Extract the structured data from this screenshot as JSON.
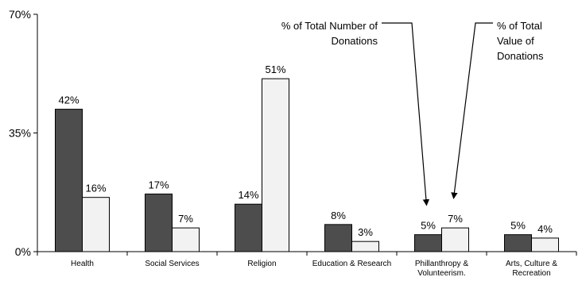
{
  "chart_data": {
    "type": "bar",
    "categories": [
      [
        "Health"
      ],
      [
        "Social Services"
      ],
      [
        "Religion"
      ],
      [
        "Education & Research"
      ],
      [
        "Phillanthropy &",
        "Volunteerism."
      ],
      [
        "Arts, Culture &",
        "Recreation"
      ]
    ],
    "series": [
      {
        "color": "#4d4d4d",
        "values": [
          42,
          17,
          14,
          8,
          5,
          5
        ],
        "labels": [
          "42%",
          "17%",
          "14%",
          "8%",
          "5%",
          "5%"
        ]
      },
      {
        "color": "#f2f2f2",
        "values": [
          16,
          7,
          51,
          3,
          7,
          4
        ],
        "labels": [
          "16%",
          "7%",
          "51%",
          "3%",
          "7%",
          "4%"
        ]
      }
    ],
    "ylim": [
      0,
      70
    ],
    "yticks": [
      0,
      35,
      70
    ],
    "ytick_labels": [
      "0%",
      "35%",
      "70%"
    ],
    "annotations": [
      {
        "lines": [
          "% of Total Number of",
          "Donations"
        ]
      },
      {
        "lines": [
          "% of Total",
          "Value of",
          "Donations"
        ]
      }
    ],
    "grid": false
  }
}
